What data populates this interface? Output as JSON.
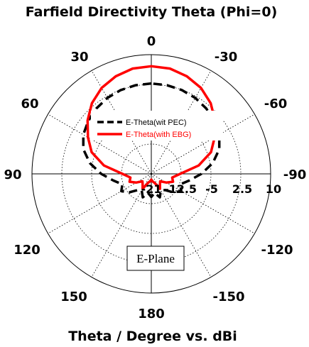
{
  "chart_data": {
    "type": "polar-line",
    "title": "Farfield Directivity Theta (Phi=0)",
    "xlabel": "Theta / Degree vs. dBi",
    "angle_ticks": [
      "0",
      "30",
      "60",
      "90",
      "120",
      "150",
      "180",
      "-150",
      "-120",
      "-90",
      "-60",
      "-30"
    ],
    "radial_ticks": [
      "-21",
      "-12.5",
      "-5",
      "2.5",
      "10"
    ],
    "radial_range": [
      -21,
      10
    ],
    "grid": true,
    "annotation": "E-Plane",
    "legend": {
      "placement": "center"
    },
    "series": [
      {
        "name": "E-Theta(wit PEC)",
        "color": "#000000",
        "style": "dashed",
        "theta": [
          0,
          10,
          20,
          30,
          40,
          50,
          60,
          70,
          80,
          90,
          100,
          110,
          120,
          130,
          140,
          150,
          160,
          170,
          180,
          -170,
          -160,
          -150,
          -140,
          -130,
          -120,
          -110,
          -100,
          -90,
          -80,
          -70,
          -60,
          -50,
          -40,
          -30,
          -20,
          -10
        ],
        "dbi": [
          2.5,
          2.4,
          2.2,
          1.8,
          1.2,
          0.4,
          -0.6,
          -2.2,
          -4.8,
          -8.0,
          -11.0,
          -13.0,
          -12.0,
          -13.5,
          -15.5,
          -16.0,
          -14.5,
          -16.0,
          -15.0,
          -16.0,
          -14.5,
          -16.0,
          -15.5,
          -13.5,
          -12.0,
          -13.0,
          -11.0,
          -8.0,
          -4.8,
          -2.2,
          -0.6,
          0.4,
          1.2,
          1.8,
          2.2,
          2.4
        ]
      },
      {
        "name": "E-Theta(with EBG)",
        "color": "#ff0000",
        "style": "solid",
        "theta": [
          0,
          10,
          20,
          30,
          40,
          50,
          60,
          70,
          80,
          90,
          100,
          110,
          120,
          130,
          140,
          150,
          160,
          170,
          180,
          -170,
          -160,
          -150,
          -140,
          -130,
          -120,
          -110,
          -100,
          -90,
          -80,
          -70,
          -60,
          -50,
          -40,
          -30,
          -20,
          -10
        ],
        "dbi": [
          7.0,
          6.8,
          6.0,
          4.8,
          3.0,
          0.6,
          -2.0,
          -4.5,
          -8.5,
          -13.5,
          -15.5,
          -15.0,
          -16.5,
          -18.0,
          -17.5,
          -16.5,
          -18.5,
          -19.0,
          -19.5,
          -19.0,
          -18.5,
          -16.5,
          -17.5,
          -18.0,
          -16.5,
          -15.0,
          -15.5,
          -13.5,
          -8.5,
          -4.5,
          -2.0,
          0.6,
          3.0,
          4.8,
          6.0,
          6.8
        ]
      }
    ]
  }
}
